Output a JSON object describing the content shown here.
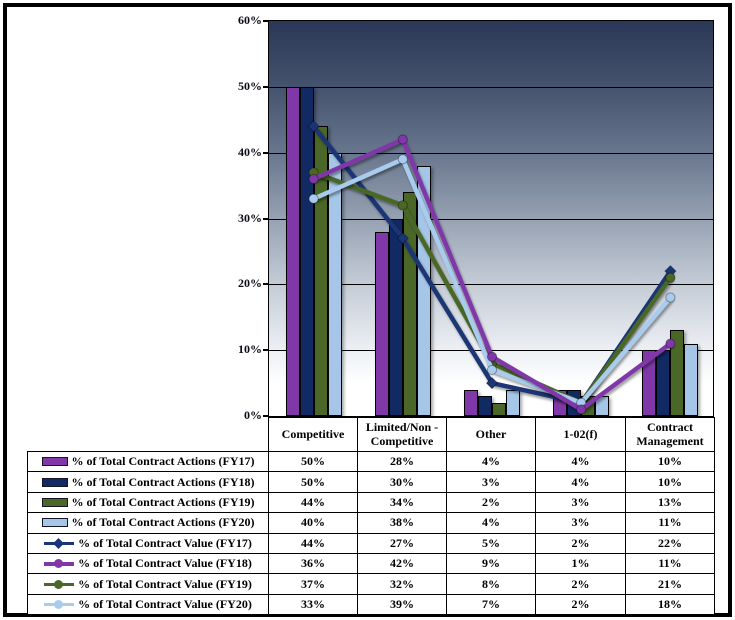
{
  "chart_data": {
    "type": "combo-bar-line",
    "title": "",
    "categories": [
      "Competitive",
      "Limited/Non - Competitive",
      "Other",
      "1-02(f)",
      "Contract Management"
    ],
    "y_axis": {
      "min": 0,
      "max": 60,
      "tick_step": 10,
      "tick_labels": [
        "0%",
        "10%",
        "20%",
        "30%",
        "40%",
        "50%",
        "60%"
      ],
      "grid": true
    },
    "legend_position": "data-table-left-column",
    "plot_background": {
      "type": "vertical-gradient",
      "top_color": "#2A3756",
      "bottom_color": "#FFFFFF"
    },
    "series": [
      {
        "name": "% of Total Contract Actions (FY17)",
        "type": "bar",
        "color": "#8038A8",
        "values": [
          50,
          28,
          4,
          4,
          10
        ],
        "display_values": [
          "50%",
          "28%",
          "4%",
          "4%",
          "10%"
        ]
      },
      {
        "name": "% of Total Contract Actions (FY18)",
        "type": "bar",
        "color": "#112A64",
        "values": [
          50,
          30,
          3,
          4,
          10
        ],
        "display_values": [
          "50%",
          "30%",
          "3%",
          "4%",
          "10%"
        ]
      },
      {
        "name": "% of Total Contract Actions (FY19)",
        "type": "bar",
        "color": "#4A6727",
        "values": [
          44,
          34,
          2,
          3,
          13
        ],
        "display_values": [
          "44%",
          "34%",
          "2%",
          "3%",
          "13%"
        ]
      },
      {
        "name": "% of Total Contract Actions (FY20)",
        "type": "bar",
        "color": "#A6C6E7",
        "values": [
          40,
          38,
          4,
          3,
          11
        ],
        "display_values": [
          "40%",
          "38%",
          "4%",
          "3%",
          "11%"
        ]
      },
      {
        "name": "% of Total Contract Value (FY17)",
        "type": "line",
        "marker": "diamond",
        "color": "#1A3575",
        "values": [
          44,
          27,
          5,
          2,
          22
        ],
        "display_values": [
          "44%",
          "27%",
          "5%",
          "2%",
          "22%"
        ]
      },
      {
        "name": "% of Total Contract Value (FY18)",
        "type": "line",
        "marker": "circle",
        "color": "#8038A8",
        "values": [
          36,
          42,
          9,
          1,
          11
        ],
        "display_values": [
          "36%",
          "42%",
          "9%",
          "1%",
          "11%"
        ]
      },
      {
        "name": "% of Total Contract Value (FY19)",
        "type": "line",
        "marker": "circle",
        "color": "#4A6727",
        "values": [
          37,
          32,
          8,
          2,
          21
        ],
        "display_values": [
          "37%",
          "32%",
          "8%",
          "2%",
          "21%"
        ]
      },
      {
        "name": "% of Total Contract Value (FY20)",
        "type": "line",
        "marker": "circle",
        "color": "#A9CCEE",
        "values": [
          33,
          39,
          7,
          2,
          18
        ],
        "display_values": [
          "33%",
          "39%",
          "7%",
          "2%",
          "18%"
        ]
      }
    ],
    "line_draw_order": [
      4,
      6,
      7,
      5
    ]
  }
}
